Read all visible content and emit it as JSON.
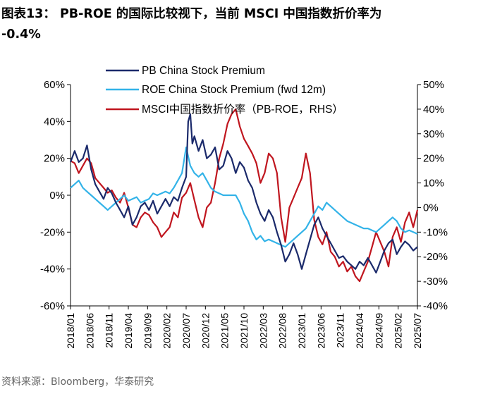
{
  "figure": {
    "title_line1": "图表13： PB-ROE 的国际比较视下，当前 MSCI 中国指数折价率为",
    "title_line2": "-0.4%",
    "source": "资料来源：Bloomberg，华泰研究"
  },
  "chart_data": {
    "type": "line",
    "x_ticks": [
      "2018/01",
      "2018/06",
      "2018/11",
      "2019/04",
      "2019/09",
      "2020/02",
      "2020/07",
      "2020/12",
      "2021/05",
      "2021/10",
      "2022/03",
      "2022/08",
      "2023/01",
      "2023/06",
      "2023/11",
      "2024/04",
      "2024/09",
      "2025/02",
      "2025/07"
    ],
    "x_range": [
      "2018/01",
      "2025/07"
    ],
    "y_left": {
      "ticks": [
        "60%",
        "40%",
        "20%",
        "0%",
        "-20%",
        "-40%",
        "-60%"
      ],
      "range": [
        -60,
        60
      ]
    },
    "y_right": {
      "ticks": [
        "50%",
        "40%",
        "30%",
        "20%",
        "10%",
        "0%",
        "-10%",
        "-20%",
        "-30%",
        "-40%"
      ],
      "range": [
        -40,
        50
      ]
    },
    "legend_position": "top-right",
    "grid": false,
    "series": [
      {
        "name": "PB China Stock Premium",
        "color": "#1b2a6b",
        "axis": "left",
        "points": [
          [
            0,
            18
          ],
          [
            2,
            24
          ],
          [
            4,
            18
          ],
          [
            6,
            20
          ],
          [
            8,
            27
          ],
          [
            10,
            14
          ],
          [
            12,
            6
          ],
          [
            14,
            2
          ],
          [
            16,
            -2
          ],
          [
            18,
            4
          ],
          [
            20,
            1
          ],
          [
            22,
            -4
          ],
          [
            24,
            -8
          ],
          [
            26,
            -12
          ],
          [
            28,
            -6
          ],
          [
            30,
            -16
          ],
          [
            32,
            -12
          ],
          [
            34,
            -6
          ],
          [
            36,
            -4
          ],
          [
            38,
            -8
          ],
          [
            40,
            -3
          ],
          [
            42,
            -10
          ],
          [
            44,
            -6
          ],
          [
            46,
            -2
          ],
          [
            48,
            -6
          ],
          [
            50,
            -1
          ],
          [
            52,
            -3
          ],
          [
            54,
            4
          ],
          [
            56,
            10
          ],
          [
            57,
            40
          ],
          [
            58,
            44
          ],
          [
            59,
            28
          ],
          [
            60,
            32
          ],
          [
            62,
            24
          ],
          [
            64,
            30
          ],
          [
            66,
            20
          ],
          [
            68,
            22
          ],
          [
            70,
            26
          ],
          [
            72,
            14
          ],
          [
            74,
            16
          ],
          [
            76,
            24
          ],
          [
            78,
            20
          ],
          [
            80,
            12
          ],
          [
            82,
            18
          ],
          [
            84,
            15
          ],
          [
            86,
            8
          ],
          [
            88,
            4
          ],
          [
            90,
            -4
          ],
          [
            92,
            -10
          ],
          [
            94,
            -14
          ],
          [
            96,
            -8
          ],
          [
            98,
            -12
          ],
          [
            100,
            -20
          ],
          [
            102,
            -27
          ],
          [
            104,
            -36
          ],
          [
            106,
            -32
          ],
          [
            108,
            -26
          ],
          [
            110,
            -32
          ],
          [
            112,
            -40
          ],
          [
            114,
            -32
          ],
          [
            116,
            -24
          ],
          [
            118,
            -16
          ],
          [
            120,
            -12
          ],
          [
            122,
            -18
          ],
          [
            124,
            -22
          ],
          [
            126,
            -26
          ],
          [
            128,
            -30
          ],
          [
            130,
            -34
          ],
          [
            132,
            -33
          ],
          [
            134,
            -36
          ],
          [
            136,
            -38
          ],
          [
            138,
            -40
          ],
          [
            140,
            -36
          ],
          [
            142,
            -38
          ],
          [
            144,
            -34
          ],
          [
            146,
            -38
          ],
          [
            148,
            -42
          ],
          [
            150,
            -36
          ],
          [
            152,
            -30
          ],
          [
            154,
            -26
          ],
          [
            156,
            -24
          ],
          [
            158,
            -32
          ],
          [
            160,
            -28
          ],
          [
            162,
            -25
          ],
          [
            164,
            -27
          ],
          [
            166,
            -30
          ],
          [
            168,
            -28
          ]
        ]
      },
      {
        "name": "ROE China Stock Premium (fwd 12m)",
        "color": "#33b3e8",
        "axis": "left",
        "points": [
          [
            0,
            4
          ],
          [
            2,
            6
          ],
          [
            4,
            8
          ],
          [
            6,
            4
          ],
          [
            8,
            2
          ],
          [
            10,
            0
          ],
          [
            12,
            -2
          ],
          [
            14,
            -4
          ],
          [
            16,
            -6
          ],
          [
            18,
            -8
          ],
          [
            20,
            -6
          ],
          [
            22,
            -4
          ],
          [
            24,
            -2
          ],
          [
            26,
            0
          ],
          [
            28,
            -3
          ],
          [
            30,
            -2
          ],
          [
            32,
            -1
          ],
          [
            34,
            -4
          ],
          [
            36,
            -3
          ],
          [
            38,
            -2
          ],
          [
            40,
            1
          ],
          [
            42,
            0
          ],
          [
            44,
            1
          ],
          [
            46,
            2
          ],
          [
            48,
            1
          ],
          [
            50,
            4
          ],
          [
            52,
            8
          ],
          [
            54,
            12
          ],
          [
            56,
            26
          ],
          [
            58,
            16
          ],
          [
            60,
            12
          ],
          [
            62,
            10
          ],
          [
            64,
            12
          ],
          [
            66,
            8
          ],
          [
            68,
            4
          ],
          [
            70,
            2
          ],
          [
            72,
            1
          ],
          [
            74,
            0
          ],
          [
            76,
            0
          ],
          [
            78,
            0
          ],
          [
            80,
            0
          ],
          [
            82,
            -4
          ],
          [
            84,
            -10
          ],
          [
            86,
            -14
          ],
          [
            88,
            -20
          ],
          [
            90,
            -24
          ],
          [
            92,
            -22
          ],
          [
            94,
            -25
          ],
          [
            96,
            -24
          ],
          [
            98,
            -25
          ],
          [
            100,
            -26
          ],
          [
            102,
            -27
          ],
          [
            104,
            -28
          ],
          [
            106,
            -26
          ],
          [
            108,
            -24
          ],
          [
            110,
            -22
          ],
          [
            112,
            -20
          ],
          [
            114,
            -18
          ],
          [
            116,
            -14
          ],
          [
            118,
            -10
          ],
          [
            120,
            -6
          ],
          [
            122,
            -8
          ],
          [
            124,
            -4
          ],
          [
            126,
            -6
          ],
          [
            128,
            -8
          ],
          [
            130,
            -10
          ],
          [
            132,
            -12
          ],
          [
            134,
            -14
          ],
          [
            136,
            -15
          ],
          [
            138,
            -16
          ],
          [
            140,
            -17
          ],
          [
            142,
            -18
          ],
          [
            144,
            -18
          ],
          [
            146,
            -19
          ],
          [
            148,
            -20
          ],
          [
            150,
            -18
          ],
          [
            152,
            -16
          ],
          [
            154,
            -14
          ],
          [
            156,
            -12
          ],
          [
            158,
            -14
          ],
          [
            160,
            -18
          ],
          [
            162,
            -20
          ],
          [
            164,
            -19
          ],
          [
            166,
            -20
          ],
          [
            168,
            -21
          ]
        ]
      },
      {
        "name": "MSCI中国指数折价率（PB-ROE，RHS）",
        "color": "#c0161f",
        "axis": "right",
        "points": [
          [
            0,
            19
          ],
          [
            2,
            18
          ],
          [
            4,
            14
          ],
          [
            6,
            17
          ],
          [
            8,
            20
          ],
          [
            10,
            18
          ],
          [
            12,
            12
          ],
          [
            14,
            10
          ],
          [
            16,
            8
          ],
          [
            18,
            6
          ],
          [
            20,
            7
          ],
          [
            22,
            4
          ],
          [
            24,
            2
          ],
          [
            26,
            6
          ],
          [
            28,
            0
          ],
          [
            30,
            -7
          ],
          [
            32,
            -8
          ],
          [
            34,
            -4
          ],
          [
            36,
            -2
          ],
          [
            38,
            -3
          ],
          [
            40,
            -6
          ],
          [
            42,
            -8
          ],
          [
            44,
            -12
          ],
          [
            46,
            -10
          ],
          [
            48,
            -8
          ],
          [
            50,
            -2
          ],
          [
            52,
            -4
          ],
          [
            54,
            4
          ],
          [
            56,
            6
          ],
          [
            58,
            10
          ],
          [
            60,
            3
          ],
          [
            62,
            -4
          ],
          [
            64,
            -8
          ],
          [
            66,
            0
          ],
          [
            68,
            2
          ],
          [
            70,
            10
          ],
          [
            72,
            20
          ],
          [
            74,
            26
          ],
          [
            76,
            34
          ],
          [
            78,
            38
          ],
          [
            80,
            40
          ],
          [
            82,
            33
          ],
          [
            84,
            28
          ],
          [
            86,
            25
          ],
          [
            88,
            22
          ],
          [
            90,
            18
          ],
          [
            92,
            10
          ],
          [
            94,
            14
          ],
          [
            96,
            22
          ],
          [
            98,
            20
          ],
          [
            100,
            14
          ],
          [
            102,
            -4
          ],
          [
            104,
            -14
          ],
          [
            106,
            0
          ],
          [
            108,
            4
          ],
          [
            110,
            8
          ],
          [
            112,
            12
          ],
          [
            114,
            22
          ],
          [
            116,
            14
          ],
          [
            118,
            -5
          ],
          [
            120,
            -12
          ],
          [
            122,
            -15
          ],
          [
            124,
            -10
          ],
          [
            126,
            -18
          ],
          [
            128,
            -20
          ],
          [
            130,
            -24
          ],
          [
            132,
            -22
          ],
          [
            134,
            -26
          ],
          [
            136,
            -24
          ],
          [
            138,
            -28
          ],
          [
            140,
            -30
          ],
          [
            142,
            -26
          ],
          [
            144,
            -22
          ],
          [
            146,
            -16
          ],
          [
            148,
            -10
          ],
          [
            150,
            -14
          ],
          [
            152,
            -18
          ],
          [
            154,
            -24
          ],
          [
            156,
            -12
          ],
          [
            158,
            -8
          ],
          [
            160,
            -14
          ],
          [
            162,
            -6
          ],
          [
            164,
            -2
          ],
          [
            166,
            -8
          ],
          [
            168,
            -1
          ]
        ]
      }
    ]
  }
}
